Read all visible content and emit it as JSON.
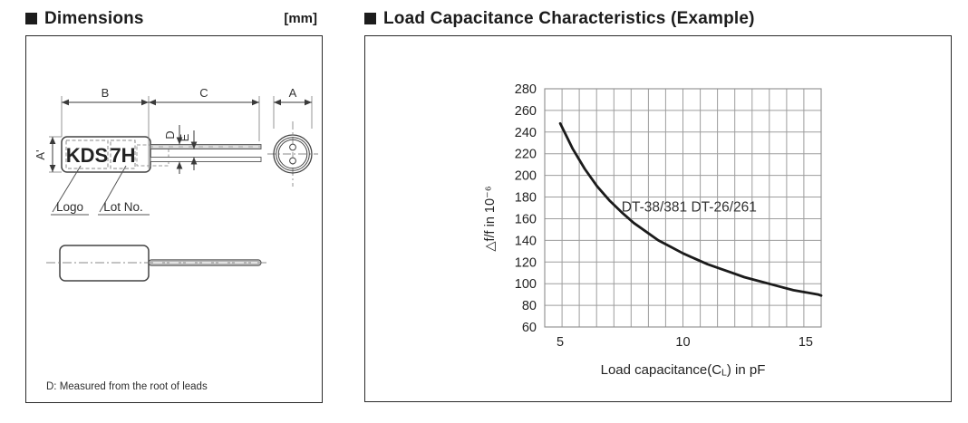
{
  "dimensions": {
    "title": "Dimensions",
    "unit_label": "[mm]",
    "labels": {
      "a": "A",
      "b": "B",
      "c": "C",
      "d": "D",
      "e": "E",
      "a_prime": "A'",
      "logo": "Logo",
      "lot_no": "Lot No."
    },
    "markings": {
      "logo_text": "KDS",
      "lot_text": "7H"
    },
    "note": "D: Measured from the root of leads"
  },
  "load_capacitance": {
    "title": "Load Capacitance Characteristics (Example)"
  },
  "chart_data": {
    "type": "line",
    "title": "",
    "xlabel": "Load capacitance(CL) in pF",
    "xlabel_parts": [
      {
        "text": "Load capacitance(C"
      },
      {
        "text": "L",
        "small": true
      },
      {
        "text": ") in pF"
      }
    ],
    "ylabel": "△f/f in 10⁻⁶",
    "xlim": [
      4.37,
      15.63
    ],
    "ylim": [
      60,
      280
    ],
    "x_ticks": [
      5,
      10,
      15
    ],
    "y_ticks": [
      60,
      80,
      100,
      120,
      140,
      160,
      180,
      200,
      220,
      240,
      260,
      280
    ],
    "x_minor_divisions": 16,
    "grid": true,
    "legend_position": "inside-annotation",
    "series": [
      {
        "name": "DT-38/381 DT-26/261",
        "x": [
          5,
          5.5,
          6,
          6.5,
          7,
          7.5,
          8,
          8.5,
          9,
          9.5,
          10,
          10.5,
          11,
          11.5,
          12,
          12.5,
          13,
          13.5,
          14,
          14.5,
          15,
          15.5,
          15.63
        ],
        "y": [
          248,
          225,
          206,
          190,
          177,
          166,
          156,
          148,
          140,
          134,
          128,
          123,
          118,
          114,
          110,
          106,
          103,
          100,
          97,
          94,
          92,
          90,
          89
        ]
      }
    ],
    "annotation": {
      "text": "DT-38/381 DT-26/261",
      "x": 7.5,
      "y": 171
    }
  },
  "colors": {
    "ink": "#1c1c1c",
    "grid": "#9d9d9d",
    "curve": "#1b1b1b",
    "drawing_line": "#3a3a3a",
    "lead_fill": "#bdbdbd"
  }
}
